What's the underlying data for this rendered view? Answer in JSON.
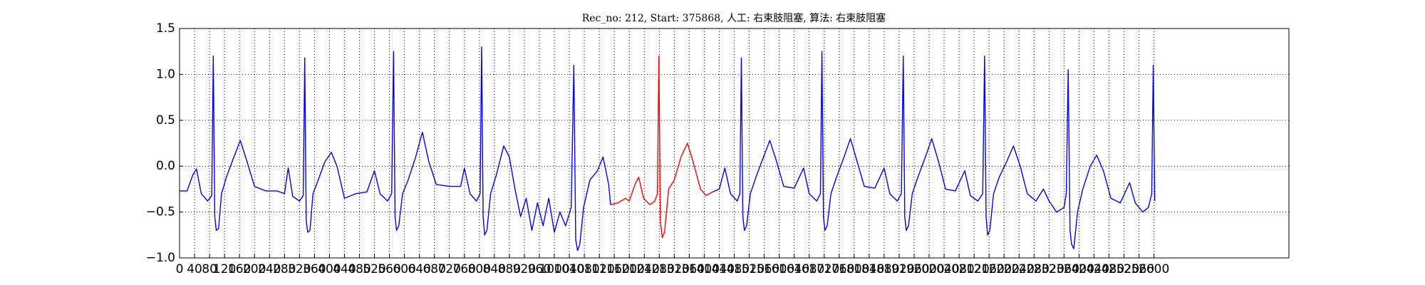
{
  "chart_data": {
    "type": "line",
    "title": "Rec_no: 212, Start: 375868, 人工: 右束肢阻塞, 算法: 右束肢阻塞",
    "xlim": [
      0,
      2960
    ],
    "ylim": [
      -1,
      1.5
    ],
    "xticks": [
      0,
      40,
      80,
      120,
      160,
      200,
      240,
      280,
      320,
      360,
      400,
      440,
      480,
      520,
      560,
      600,
      640,
      680,
      720,
      760,
      800,
      840,
      880,
      920,
      960,
      1000,
      1040,
      1080,
      1120,
      1160,
      1200,
      1240,
      1280,
      1320,
      1360,
      1400,
      1440,
      1480,
      1520,
      1560,
      1600,
      1640,
      1680,
      1720,
      1760,
      1800,
      1840,
      1880,
      1920,
      1960,
      2000,
      2040,
      2080,
      2120,
      2160,
      2200,
      2240,
      2280,
      2320,
      2360,
      2400,
      2440,
      2480,
      2520,
      2560,
      2600
    ],
    "yticks": [
      {
        "value": -1,
        "label": "−1.0"
      },
      {
        "value": -0.5,
        "label": "−0.5"
      },
      {
        "value": 0,
        "label": "0.0"
      },
      0.5,
      {
        "value": 1,
        "label": "1.0"
      },
      1.5
    ],
    "grid": true,
    "series": [
      {
        "color": "#0000ff",
        "x": [
          0,
          20,
          35,
          45,
          58,
          75,
          86,
          90,
          94,
          98,
          104,
          112,
          125,
          145,
          162,
          180,
          200,
          230,
          260,
          280,
          290,
          302,
          320,
          330,
          334,
          338,
          342,
          348,
          356,
          370,
          388,
          405,
          420,
          440,
          470,
          500,
          520,
          535,
          555,
          566,
          571,
          575,
          579,
          585,
          595,
          610,
          630,
          648,
          665,
          685,
          720,
          750,
          760,
          775,
          792,
          802,
          806,
          810,
          814,
          820,
          830,
          845,
          865,
          880,
          895,
          910,
          925,
          940,
          955,
          970,
          985,
          1000,
          1015,
          1030,
          1045,
          1052,
          1057,
          1062,
          1068,
          1078,
          1095,
          1115,
          1130,
          1145,
          1150,
          1286,
          1423,
          1440,
          1455,
          1470,
          1488,
          1495,
          1499,
          1503,
          1507,
          1513,
          1523,
          1538,
          1558,
          1575,
          1593,
          1612,
          1640,
          1665,
          1680,
          1700,
          1710,
          1714,
          1718,
          1722,
          1728,
          1738,
          1753,
          1773,
          1790,
          1808,
          1827,
          1855,
          1880,
          1895,
          1915,
          1926,
          1931,
          1935,
          1939,
          1945,
          1955,
          1970,
          1990,
          2007,
          2025,
          2044,
          2070,
          2095,
          2110,
          2130,
          2143,
          2148,
          2152,
          2156,
          2162,
          2172,
          2187,
          2207,
          2225,
          2243,
          2262,
          2285,
          2305,
          2320,
          2340,
          2360,
          2366,
          2371,
          2376,
          2380,
          2386,
          2396,
          2410,
          2430,
          2447,
          2465,
          2485,
          2510,
          2535,
          2550,
          2570,
          2585,
          2594,
          2598,
          2602
        ],
        "values": [
          -0.27,
          -0.27,
          -0.1,
          -0.03,
          -0.3,
          -0.38,
          -0.32,
          1.2,
          -0.55,
          -0.7,
          -0.68,
          -0.3,
          -0.12,
          0.1,
          0.28,
          0.05,
          -0.22,
          -0.27,
          -0.27,
          -0.3,
          -0.02,
          -0.33,
          -0.38,
          -0.32,
          1.18,
          -0.6,
          -0.72,
          -0.7,
          -0.3,
          -0.15,
          0.05,
          0.15,
          0.0,
          -0.35,
          -0.3,
          -0.28,
          -0.05,
          -0.3,
          -0.38,
          -0.3,
          1.25,
          -0.55,
          -0.7,
          -0.65,
          -0.3,
          -0.15,
          0.1,
          0.37,
          0.05,
          -0.2,
          -0.22,
          -0.22,
          -0.02,
          -0.3,
          -0.38,
          -0.3,
          1.3,
          -0.55,
          -0.75,
          -0.7,
          -0.3,
          -0.1,
          0.22,
          0.1,
          -0.25,
          -0.55,
          -0.35,
          -0.7,
          -0.4,
          -0.65,
          -0.35,
          -0.72,
          -0.5,
          -0.65,
          -0.45,
          1.1,
          -0.8,
          -0.92,
          -0.85,
          -0.45,
          -0.15,
          -0.05,
          0.1,
          -0.2,
          -0.42,
          null,
          -0.28,
          -0.25,
          -0.02,
          -0.3,
          -0.38,
          -0.3,
          1.18,
          -0.55,
          -0.7,
          -0.65,
          -0.3,
          -0.12,
          0.1,
          0.28,
          0.05,
          -0.22,
          -0.24,
          -0.02,
          -0.3,
          -0.38,
          -0.3,
          1.25,
          -0.55,
          -0.7,
          -0.65,
          -0.3,
          -0.12,
          0.1,
          0.3,
          0.05,
          -0.22,
          -0.24,
          -0.02,
          -0.3,
          -0.38,
          -0.3,
          1.2,
          -0.55,
          -0.7,
          -0.65,
          -0.3,
          -0.12,
          0.1,
          0.3,
          0.05,
          -0.25,
          -0.27,
          -0.05,
          -0.32,
          -0.38,
          -0.3,
          1.2,
          -0.55,
          -0.75,
          -0.7,
          -0.3,
          -0.12,
          0.05,
          0.22,
          0.0,
          -0.3,
          -0.38,
          -0.25,
          -0.38,
          -0.5,
          -0.45,
          -0.3,
          1.05,
          -0.7,
          -0.85,
          -0.9,
          -0.5,
          -0.25,
          0.0,
          0.12,
          -0.05,
          -0.35,
          -0.4,
          -0.18,
          -0.4,
          -0.5,
          -0.45,
          -0.3,
          1.1,
          -0.38
        ]
      },
      {
        "color": "#ff0000",
        "x": [
          1150,
          1170,
          1190,
          1200,
          1215,
          1225,
          1238,
          1255,
          1268,
          1275,
          1279,
          1283,
          1288,
          1294,
          1305,
          1320,
          1338,
          1355,
          1370,
          1390,
          1405,
          1423
        ],
        "values": [
          -0.42,
          -0.4,
          -0.35,
          -0.38,
          -0.2,
          -0.12,
          -0.35,
          -0.42,
          -0.38,
          -0.3,
          1.2,
          -0.6,
          -0.78,
          -0.72,
          -0.25,
          -0.15,
          0.1,
          0.25,
          0.05,
          -0.25,
          -0.32,
          -0.28
        ]
      }
    ]
  }
}
